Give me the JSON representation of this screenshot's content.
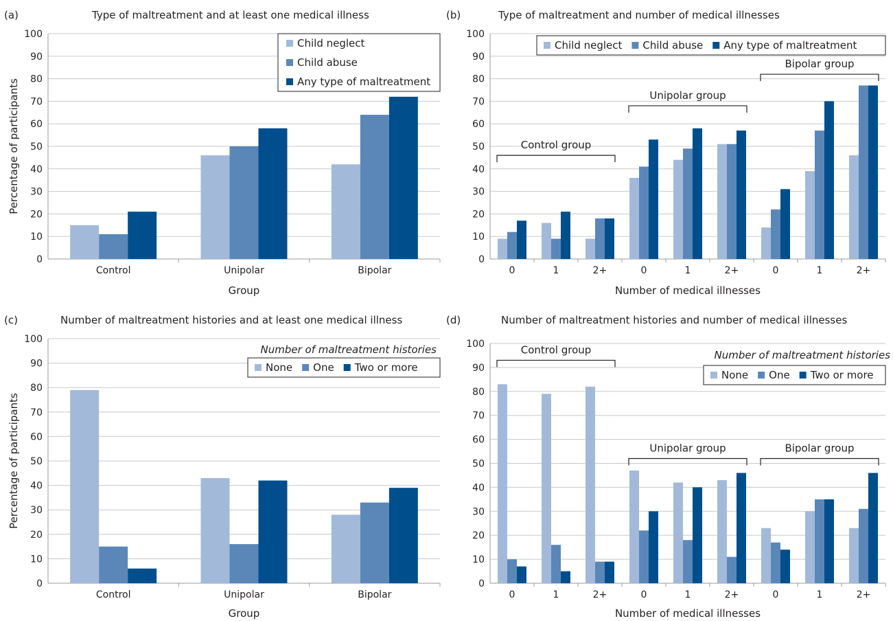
{
  "colors": {
    "light": "#a3b9d9",
    "mid": "#5b87b8",
    "dark": "#004f8c"
  },
  "chart_data": [
    {
      "panel": "(a)",
      "type": "bar",
      "title": "Type of maltreatment and at least one medical illness",
      "xlabel": "Group",
      "ylabel": "Percentage of participants",
      "ylim": [
        0,
        100
      ],
      "yticks": [
        0,
        10,
        20,
        30,
        40,
        50,
        60,
        70,
        80,
        90,
        100
      ],
      "grid": true,
      "categories": [
        "Control",
        "Unipolar",
        "Bipolar"
      ],
      "legend_title": "",
      "legend_position": "top-right",
      "series": [
        {
          "name": "Child neglect",
          "values": [
            15,
            46,
            42
          ]
        },
        {
          "name": "Child abuse",
          "values": [
            11,
            50,
            64
          ]
        },
        {
          "name": "Any type of maltreatment",
          "values": [
            21,
            58,
            72
          ]
        }
      ],
      "group_labels": []
    },
    {
      "panel": "(b)",
      "type": "bar",
      "title": "Type of maltreatment and number of medical illnesses",
      "xlabel": "Number of medical illnesses",
      "ylabel": "",
      "ylim": [
        0,
        100
      ],
      "yticks": [
        0,
        10,
        20,
        30,
        40,
        50,
        60,
        70,
        80,
        90,
        100
      ],
      "grid": true,
      "categories": [
        "0",
        "1",
        "2+",
        "0",
        "1",
        "2+",
        "0",
        "1",
        "2+"
      ],
      "legend_title": "",
      "legend_position": "top",
      "series": [
        {
          "name": "Child neglect",
          "values": [
            9,
            16,
            9,
            36,
            44,
            51,
            14,
            39,
            46
          ]
        },
        {
          "name": "Child abuse",
          "values": [
            12,
            9,
            18,
            41,
            49,
            51,
            22,
            57,
            77
          ]
        },
        {
          "name": "Any type of maltreatment",
          "values": [
            17,
            21,
            18,
            53,
            58,
            57,
            31,
            70,
            77
          ]
        }
      ],
      "group_labels": [
        {
          "label": "Control group",
          "start": 0,
          "end": 2,
          "level": 46
        },
        {
          "label": "Unipolar group",
          "start": 3,
          "end": 5,
          "level": 68
        },
        {
          "label": "Bipolar group",
          "start": 6,
          "end": 8,
          "level": 82
        }
      ]
    },
    {
      "panel": "(c)",
      "type": "bar",
      "title": "Number of maltreatment histories and at least one medical illness",
      "xlabel": "Group",
      "ylabel": "Percentage of participants",
      "ylim": [
        0,
        100
      ],
      "yticks": [
        0,
        10,
        20,
        30,
        40,
        50,
        60,
        70,
        80,
        90,
        100
      ],
      "grid": true,
      "categories": [
        "Control",
        "Unipolar",
        "Bipolar"
      ],
      "legend_title": "Number of maltreatment histories",
      "legend_position": "top-right",
      "series": [
        {
          "name": "None",
          "values": [
            79,
            43,
            28
          ]
        },
        {
          "name": "One",
          "values": [
            15,
            16,
            33
          ]
        },
        {
          "name": "Two or more",
          "values": [
            6,
            42,
            39
          ]
        }
      ],
      "group_labels": []
    },
    {
      "panel": "(d)",
      "type": "bar",
      "title": "Number of maltreatment histories and number of medical illnesses",
      "xlabel": "Number of medical illnesses",
      "ylabel": "",
      "ylim": [
        0,
        100
      ],
      "yticks": [
        0,
        10,
        20,
        30,
        40,
        50,
        60,
        70,
        80,
        90,
        100
      ],
      "grid": true,
      "categories": [
        "0",
        "1",
        "2+",
        "0",
        "1",
        "2+",
        "0",
        "1",
        "2+"
      ],
      "legend_title": "Number of maltreatment histories",
      "legend_position": "top-right",
      "series": [
        {
          "name": "None",
          "values": [
            83,
            79,
            82,
            47,
            42,
            43,
            23,
            30,
            23
          ]
        },
        {
          "name": "One",
          "values": [
            10,
            16,
            9,
            22,
            18,
            11,
            17,
            35,
            31
          ]
        },
        {
          "name": "Two or more",
          "values": [
            7,
            5,
            9,
            30,
            40,
            46,
            14,
            35,
            46
          ]
        }
      ],
      "group_labels": [
        {
          "label": "Control group",
          "start": 0,
          "end": 2,
          "level": 93
        },
        {
          "label": "Unipolar group",
          "start": 3,
          "end": 5,
          "level": 52
        },
        {
          "label": "Bipolar group",
          "start": 6,
          "end": 8,
          "level": 52
        }
      ]
    }
  ]
}
